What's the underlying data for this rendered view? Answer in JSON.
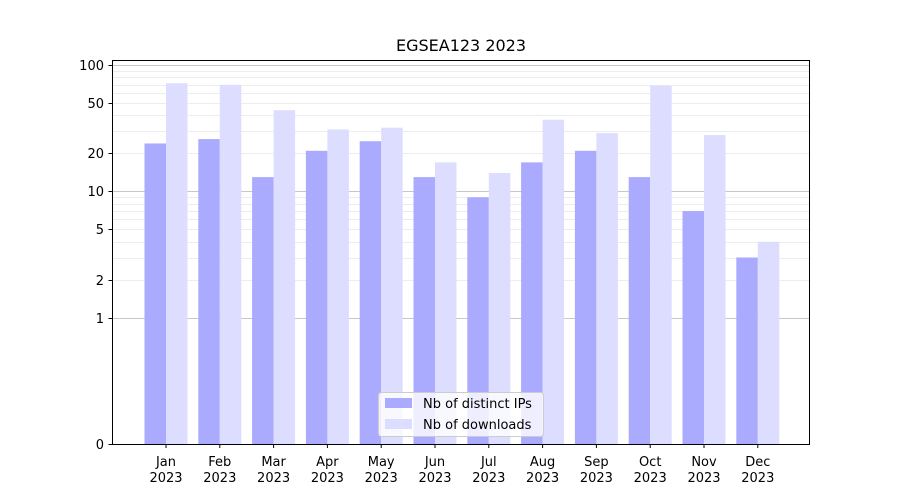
{
  "chart_data": {
    "type": "bar",
    "title": "EGSEA123 2023",
    "xlabel": "",
    "ylabel": "",
    "yscale": "symlog",
    "ylim": [
      0,
      110
    ],
    "yticks": [
      0,
      1,
      2,
      5,
      10,
      20,
      50,
      100
    ],
    "categories": [
      [
        "Jan",
        "2023"
      ],
      [
        "Feb",
        "2023"
      ],
      [
        "Mar",
        "2023"
      ],
      [
        "Apr",
        "2023"
      ],
      [
        "May",
        "2023"
      ],
      [
        "Jun",
        "2023"
      ],
      [
        "Jul",
        "2023"
      ],
      [
        "Aug",
        "2023"
      ],
      [
        "Sep",
        "2023"
      ],
      [
        "Oct",
        "2023"
      ],
      [
        "Nov",
        "2023"
      ],
      [
        "Dec",
        "2023"
      ]
    ],
    "series": [
      {
        "name": "Nb of distinct IPs",
        "color": "#aaaaff",
        "values": [
          24,
          26,
          13,
          21,
          25,
          13,
          9,
          17,
          21,
          13,
          7,
          3
        ]
      },
      {
        "name": "Nb of downloads",
        "color": "#ddddff",
        "values": [
          72,
          70,
          44,
          31,
          32,
          17,
          14,
          37,
          29,
          69,
          28,
          4
        ]
      }
    ],
    "grid": true,
    "legend": "bottom-center"
  }
}
